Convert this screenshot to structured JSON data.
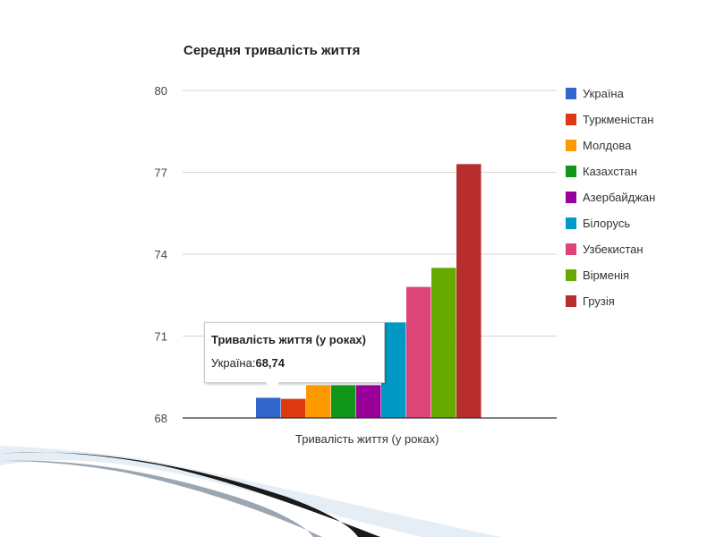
{
  "chart_data": {
    "type": "bar",
    "title": "Середня тривалість життя",
    "xlabel": "Тривалість життя (у роках)",
    "ylabel": "",
    "categories": [
      "Тривалість життя (у роках)"
    ],
    "ylim": [
      68,
      80
    ],
    "yticks": [
      "68",
      "71",
      "74",
      "77",
      "80"
    ],
    "series": [
      {
        "name": "Україна",
        "value": 68.74,
        "color": "#3366cc"
      },
      {
        "name": "Туркменістан",
        "value": 68.7,
        "color": "#dc3912"
      },
      {
        "name": "Молдова",
        "value": 69.2,
        "color": "#ff9900"
      },
      {
        "name": "Казахстан",
        "value": 69.2,
        "color": "#109618"
      },
      {
        "name": "Азербайджан",
        "value": 69.2,
        "color": "#990099"
      },
      {
        "name": "Білорусь",
        "value": 71.5,
        "color": "#0099c6"
      },
      {
        "name": "Узбекистан",
        "value": 72.8,
        "color": "#dd4477"
      },
      {
        "name": "Вірменія",
        "value": 73.5,
        "color": "#66aa00"
      },
      {
        "name": "Грузія",
        "value": 77.3,
        "color": "#b82e2e"
      }
    ],
    "legend_position": "right",
    "grid": true
  },
  "tooltip": {
    "title": "Тривалість життя (у роках)",
    "label": "Україна:",
    "value": "68,74"
  }
}
